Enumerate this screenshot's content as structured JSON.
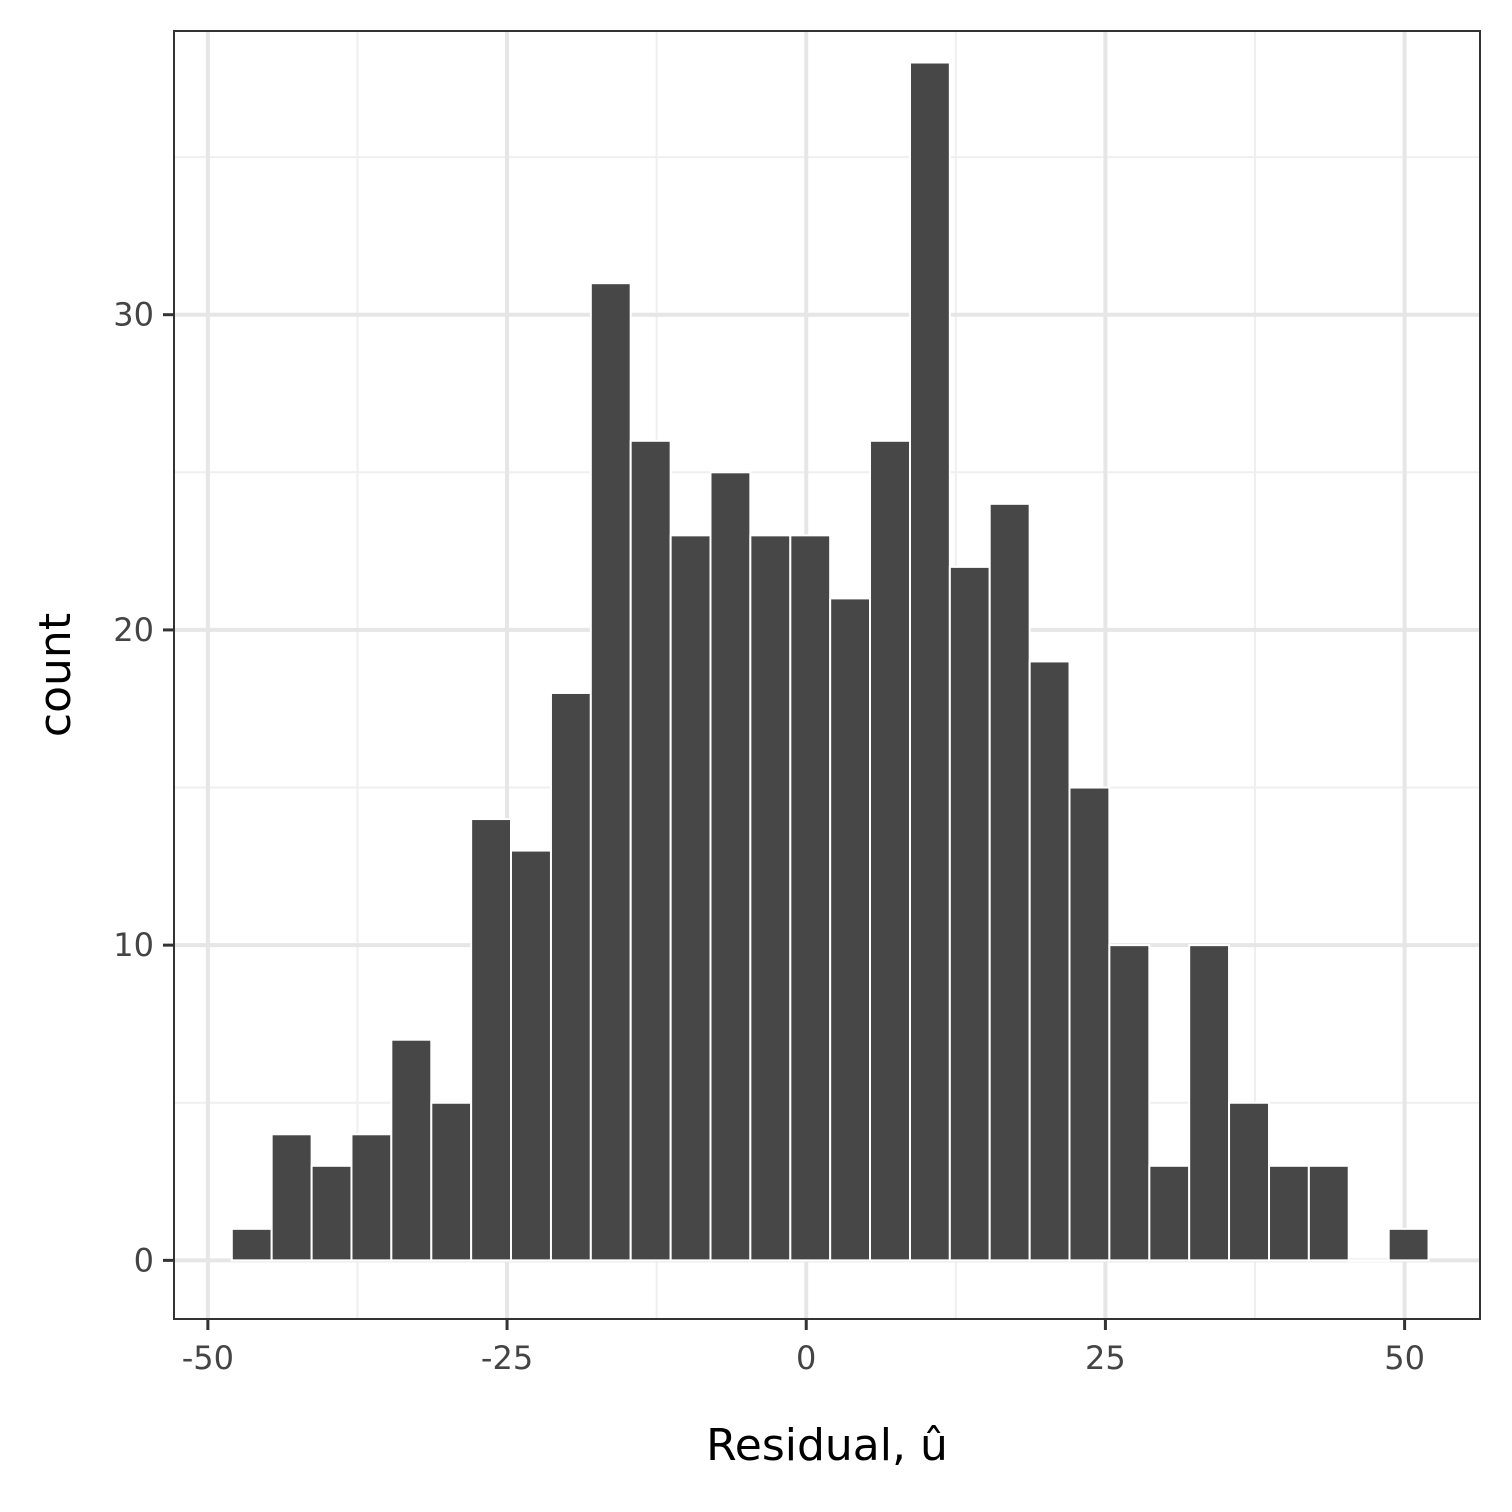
{
  "chart_data": {
    "type": "bar",
    "subtype": "histogram",
    "xlabel": "Residual, û",
    "ylabel": "count",
    "x_ticks": [
      -50,
      -25,
      0,
      25,
      50
    ],
    "y_ticks": [
      0,
      10,
      20,
      30
    ],
    "xlim": [
      -52.83,
      56.3
    ],
    "ylim": [
      -1.86,
      39.0
    ],
    "grid": true,
    "bin_width": 3.33,
    "bins": [
      {
        "start": -48.0,
        "end": -44.67,
        "count": 1
      },
      {
        "start": -44.67,
        "end": -41.33,
        "count": 4
      },
      {
        "start": -41.33,
        "end": -38.0,
        "count": 3
      },
      {
        "start": -38.0,
        "end": -34.67,
        "count": 4
      },
      {
        "start": -34.67,
        "end": -31.33,
        "count": 7
      },
      {
        "start": -31.33,
        "end": -28.0,
        "count": 5
      },
      {
        "start": -28.0,
        "end": -24.67,
        "count": 14
      },
      {
        "start": -24.67,
        "end": -21.33,
        "count": 13
      },
      {
        "start": -21.33,
        "end": -18.0,
        "count": 18
      },
      {
        "start": -18.0,
        "end": -14.67,
        "count": 31
      },
      {
        "start": -14.67,
        "end": -11.33,
        "count": 26
      },
      {
        "start": -11.33,
        "end": -8.0,
        "count": 23
      },
      {
        "start": -8.0,
        "end": -4.67,
        "count": 25
      },
      {
        "start": -4.67,
        "end": -1.33,
        "count": 23
      },
      {
        "start": -1.33,
        "end": 2.0,
        "count": 23
      },
      {
        "start": 2.0,
        "end": 5.33,
        "count": 21
      },
      {
        "start": 5.33,
        "end": 8.67,
        "count": 26
      },
      {
        "start": 8.67,
        "end": 12.0,
        "count": 38
      },
      {
        "start": 12.0,
        "end": 15.33,
        "count": 22
      },
      {
        "start": 15.33,
        "end": 18.67,
        "count": 24
      },
      {
        "start": 18.67,
        "end": 22.0,
        "count": 19
      },
      {
        "start": 22.0,
        "end": 25.33,
        "count": 15
      },
      {
        "start": 25.33,
        "end": 28.67,
        "count": 10
      },
      {
        "start": 28.67,
        "end": 32.0,
        "count": 3
      },
      {
        "start": 32.0,
        "end": 35.33,
        "count": 10
      },
      {
        "start": 35.33,
        "end": 38.67,
        "count": 5
      },
      {
        "start": 38.67,
        "end": 42.0,
        "count": 3
      },
      {
        "start": 42.0,
        "end": 45.33,
        "count": 3
      },
      {
        "start": 45.33,
        "end": 48.67,
        "count": 0
      },
      {
        "start": 48.67,
        "end": 52.0,
        "count": 1
      }
    ],
    "colors": {
      "bar_fill": "#474747",
      "bar_outline": "#ffffff",
      "grid_major": "#e6e6e6",
      "grid_minor": "#efefef",
      "panel_border": "#333333",
      "background": "#ffffff"
    }
  }
}
